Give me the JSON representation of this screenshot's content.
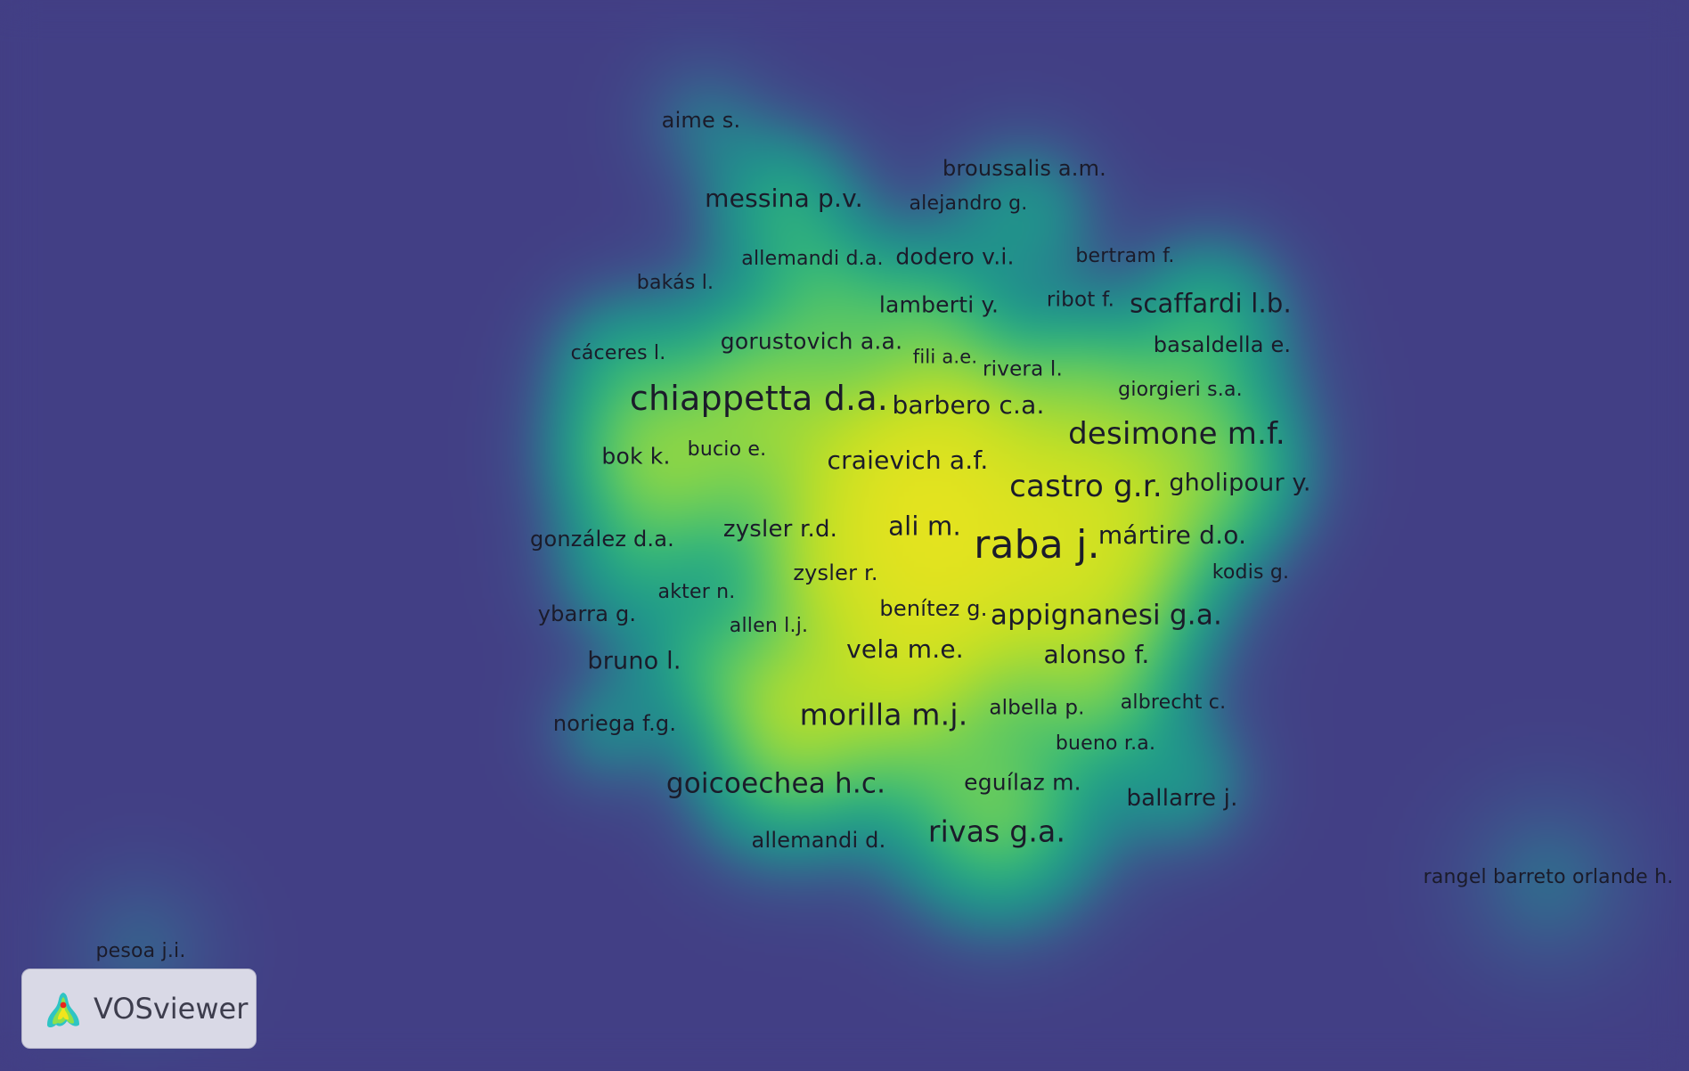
{
  "app": {
    "logo_text": "VOSviewer",
    "colors": {
      "background": "#423f85",
      "density_low": "#1f9a8a",
      "density_mid": "#5cc860",
      "density_high": "#f0e61c",
      "label": "#1b1b2a"
    }
  },
  "nodes": [
    {
      "label": "raba j.",
      "weight": 10
    },
    {
      "label": "chiappetta d.a.",
      "weight": 8
    },
    {
      "label": "ali m.",
      "weight": 7
    },
    {
      "label": "castro g.r.",
      "weight": 6
    },
    {
      "label": "desimone m.f.",
      "weight": 6
    },
    {
      "label": "morilla m.j.",
      "weight": 6
    },
    {
      "label": "rivas g.a.",
      "weight": 6
    },
    {
      "label": "goicoechea h.c.",
      "weight": 5
    },
    {
      "label": "appignanesi g.a.",
      "weight": 5
    },
    {
      "label": "scaffardi l.b.",
      "weight": 5
    },
    {
      "label": "messina p.v.",
      "weight": 5
    },
    {
      "label": "craievich a.f.",
      "weight": 4
    },
    {
      "label": "mártire d.o.",
      "weight": 4
    },
    {
      "label": "vela m.e.",
      "weight": 4
    },
    {
      "label": "alonso f.",
      "weight": 4
    },
    {
      "label": "barbero c.a.",
      "weight": 4
    },
    {
      "label": "bruno l.",
      "weight": 4
    },
    {
      "label": "zysler r.d.",
      "weight": 4
    },
    {
      "label": "dodero v.i.",
      "weight": 4
    },
    {
      "label": "gholipour y.",
      "weight": 4
    },
    {
      "label": "lamberti y.",
      "weight": 3
    },
    {
      "label": "ballarre j.",
      "weight": 3
    },
    {
      "label": "bok k.",
      "weight": 3
    },
    {
      "label": "gorustovich a.a.",
      "weight": 3
    },
    {
      "label": "eguílaz m.",
      "weight": 3
    },
    {
      "label": "broussalis a.m.",
      "weight": 3
    },
    {
      "label": "gonzález d.a.",
      "weight": 3
    },
    {
      "label": "aime s.",
      "weight": 3
    },
    {
      "label": "noriega f.g.",
      "weight": 3
    },
    {
      "label": "rivera l.",
      "weight": 3
    },
    {
      "label": "ribot f.",
      "weight": 3
    },
    {
      "label": "basaldella e.",
      "weight": 3
    },
    {
      "label": "allemandi d.",
      "weight": 3
    },
    {
      "label": "zysler r.",
      "weight": 2
    },
    {
      "label": "ybarra g.",
      "weight": 2
    },
    {
      "label": "benítez g.",
      "weight": 2
    },
    {
      "label": "albella p.",
      "weight": 2
    },
    {
      "label": "allemandi d.a.",
      "weight": 2
    },
    {
      "label": "bertram f.",
      "weight": 2
    },
    {
      "label": "alejandro g.",
      "weight": 2
    },
    {
      "label": "bakás l.",
      "weight": 2
    },
    {
      "label": "cáceres l.",
      "weight": 2
    },
    {
      "label": "fili a.e.",
      "weight": 2
    },
    {
      "label": "giorgieri s.a.",
      "weight": 2
    },
    {
      "label": "bucio e.",
      "weight": 2
    },
    {
      "label": "akter n.",
      "weight": 2
    },
    {
      "label": "allen l.j.",
      "weight": 2
    },
    {
      "label": "kodis g.",
      "weight": 2
    },
    {
      "label": "albrecht c.",
      "weight": 2
    },
    {
      "label": "bueno r.a.",
      "weight": 2
    },
    {
      "label": "rangel barreto orlande h.",
      "weight": 2
    },
    {
      "label": "pesoa j.i.",
      "weight": 2
    }
  ]
}
